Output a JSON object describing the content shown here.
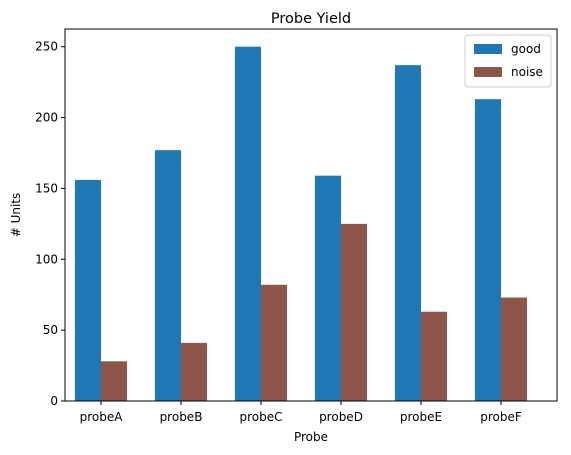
{
  "chart_data": {
    "type": "bar",
    "title": "Probe Yield",
    "xlabel": "Probe",
    "ylabel": "# Units",
    "categories": [
      "probeA",
      "probeB",
      "probeC",
      "probeD",
      "probeE",
      "probeF"
    ],
    "series": [
      {
        "name": "good",
        "color": "#1f77b4",
        "values": [
          156,
          177,
          250,
          159,
          237,
          213
        ]
      },
      {
        "name": "noise",
        "color": "#8c564b",
        "values": [
          28,
          41,
          82,
          125,
          63,
          73
        ]
      }
    ],
    "ylim": [
      0,
      262.5
    ],
    "yticks": [
      0,
      50,
      100,
      150,
      200,
      250
    ],
    "grid": false,
    "legend_position": "top-right"
  }
}
